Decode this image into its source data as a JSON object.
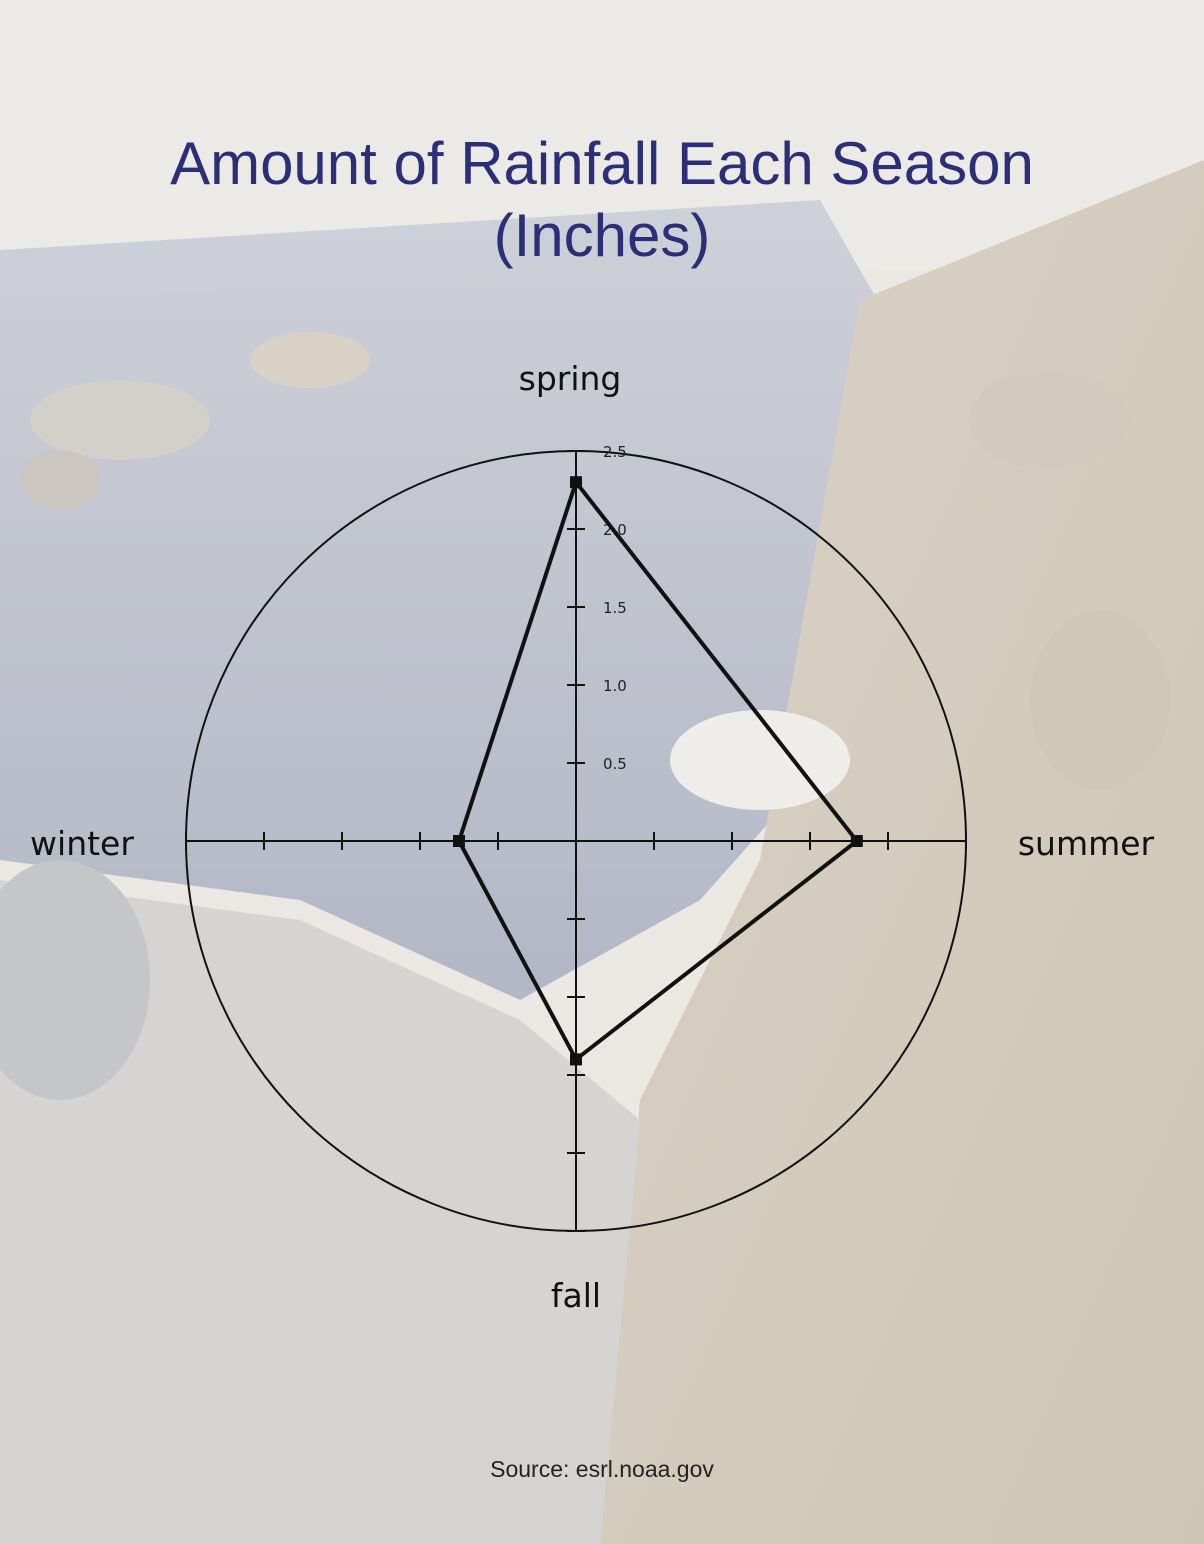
{
  "chart_data": {
    "type": "radar",
    "title_lines": [
      "Amount of Rainfall Each Season",
      "(Inches)"
    ],
    "categories": [
      "spring",
      "summer",
      "fall",
      "winter"
    ],
    "values": [
      2.3,
      1.8,
      1.4,
      0.75
    ],
    "radial_range": [
      0,
      2.5
    ],
    "radial_ticks": [
      "0.5",
      "1.0",
      "1.5",
      "2.0",
      "2.5"
    ],
    "radial_tick_values": [
      0.5,
      1.0,
      1.5,
      2.0,
      2.5
    ],
    "grid": false,
    "legend": "none"
  },
  "source": "Source: esrl.noaa.gov",
  "colors": {
    "title": "#2c2f78",
    "line": "#111111",
    "axis": "#111111"
  }
}
